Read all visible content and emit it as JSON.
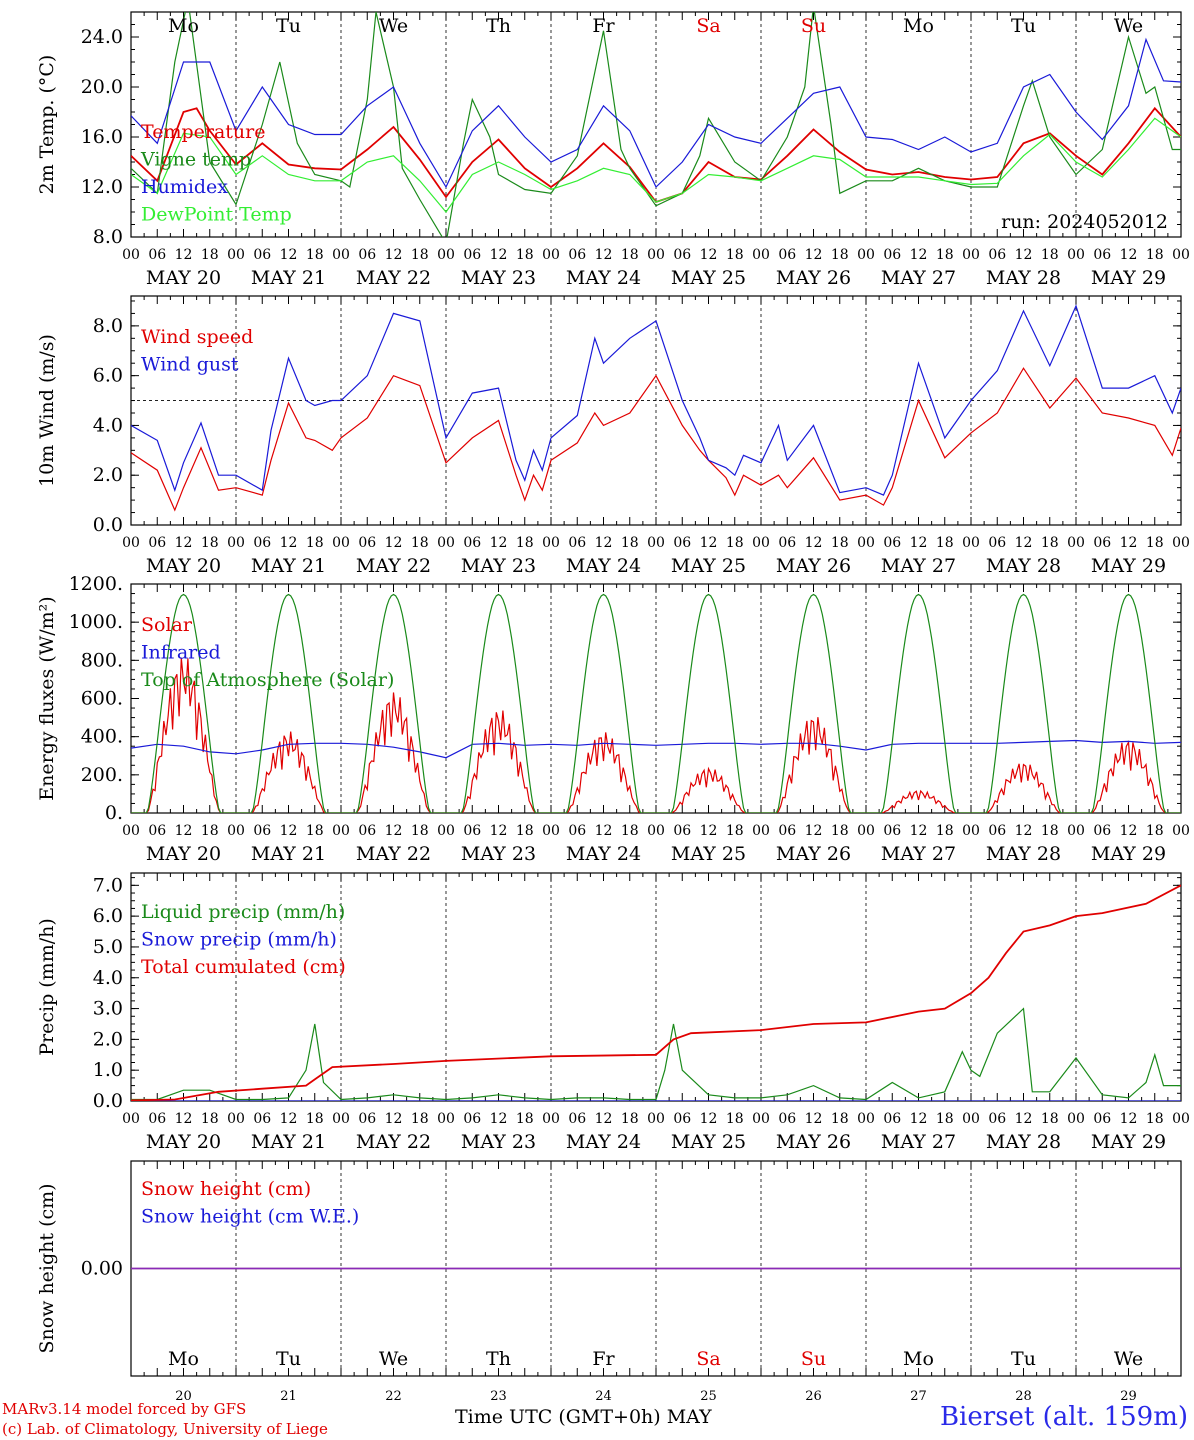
{
  "run_label": "run: 2024052012",
  "weekdays": [
    "Mo",
    "Tu",
    "We",
    "Th",
    "Fr",
    "Sa",
    "Su",
    "Mo",
    "Tu",
    "We"
  ],
  "weekend_color": "#e00000",
  "date_labels": [
    "MAY 20",
    "MAY 21",
    "MAY 22",
    "MAY 23",
    "MAY 24",
    "MAY 25",
    "MAY 26",
    "MAY 27",
    "MAY 28",
    "MAY 29"
  ],
  "hour_labels": [
    "00",
    "06",
    "12",
    "18"
  ],
  "bottom_days": [
    "20",
    "21",
    "22",
    "23",
    "24",
    "25",
    "26",
    "27",
    "28",
    "29"
  ],
  "footer": {
    "model": "MARv3.14 model forced by GFS",
    "lab": "(c) Lab. of Climatology, University of Liege",
    "xaxis": "Time UTC (GMT+0h) MAY",
    "station": "Bierset (alt. 159m)"
  },
  "chart_data": [
    {
      "type": "line",
      "ylabel": "2m Temp. (°C)",
      "ylim": [
        8,
        26
      ],
      "yticks": [
        "8.0",
        "12.0",
        "16.0",
        "20.0",
        "24.0"
      ],
      "ytick_values": [
        8,
        12,
        16,
        20,
        24
      ],
      "x_unit": "hours since 2024-05-20 00 UTC",
      "series": [
        {
          "name": "Temperature",
          "color": "#e00000",
          "x": [
            0,
            6,
            12,
            15,
            18,
            24,
            30,
            36,
            42,
            48,
            54,
            60,
            66,
            72,
            78,
            84,
            90,
            96,
            102,
            108,
            114,
            120,
            126,
            132,
            138,
            144,
            150,
            156,
            162,
            168,
            174,
            180,
            186,
            192,
            198,
            204,
            210,
            216,
            222,
            228,
            234,
            240
          ],
          "y": [
            14.5,
            12.5,
            18.0,
            18.3,
            16.5,
            13.8,
            15.5,
            13.8,
            13.5,
            13.4,
            15.0,
            16.8,
            14.2,
            11.2,
            14.0,
            15.8,
            13.5,
            12.0,
            13.5,
            15.5,
            13.6,
            10.8,
            11.5,
            14.0,
            12.8,
            12.6,
            14.5,
            16.6,
            14.8,
            13.4,
            13.0,
            13.2,
            12.8,
            12.6,
            12.8,
            15.5,
            16.3,
            14.5,
            13.0,
            15.5,
            18.3,
            16.0
          ]
        },
        {
          "name": "Vigne temp",
          "color": "#1a8a1a",
          "x": [
            0,
            6,
            10,
            13,
            18,
            24,
            30,
            34,
            38,
            42,
            48,
            50,
            54,
            56,
            60,
            62,
            66,
            72,
            76,
            78,
            82,
            84,
            90,
            96,
            102,
            108,
            112,
            114,
            120,
            126,
            130,
            132,
            138,
            144,
            150,
            154,
            156,
            160,
            162,
            168,
            174,
            180,
            186,
            192,
            198,
            204,
            206,
            210,
            216,
            222,
            228,
            232,
            234,
            238,
            240
          ],
          "y": [
            13.5,
            11.5,
            22.0,
            27.0,
            14.0,
            10.6,
            17.0,
            22.0,
            15.5,
            13.0,
            12.5,
            12.0,
            19.0,
            26.0,
            20.0,
            13.5,
            11.0,
            7.5,
            15.5,
            19.0,
            16.0,
            13.0,
            11.8,
            11.5,
            14.5,
            24.5,
            15.0,
            13.5,
            10.5,
            11.5,
            14.5,
            17.5,
            14.0,
            12.5,
            16.0,
            20.0,
            26.5,
            17.0,
            11.5,
            12.5,
            12.5,
            13.5,
            12.5,
            12.0,
            12.0,
            18.5,
            20.5,
            16.0,
            13.0,
            15.0,
            24.0,
            19.5,
            20.0,
            15.0,
            15.0
          ]
        },
        {
          "name": "Humidex",
          "color": "#1a1ad8",
          "x": [
            0,
            6,
            12,
            18,
            24,
            30,
            36,
            42,
            48,
            54,
            60,
            66,
            72,
            78,
            84,
            90,
            96,
            102,
            108,
            114,
            120,
            126,
            132,
            138,
            144,
            150,
            156,
            162,
            168,
            174,
            180,
            186,
            192,
            198,
            204,
            210,
            216,
            222,
            228,
            232,
            236,
            240
          ],
          "y": [
            17.7,
            15.5,
            22.0,
            22.0,
            16.5,
            20.0,
            17.0,
            16.2,
            16.2,
            18.5,
            20.0,
            15.5,
            12.0,
            16.5,
            18.5,
            16.0,
            14.0,
            15.0,
            18.5,
            16.5,
            12.0,
            14.0,
            17.0,
            16.0,
            15.5,
            17.5,
            19.5,
            20.0,
            16.0,
            15.8,
            15.0,
            16.0,
            14.8,
            15.5,
            20.0,
            21.0,
            18.0,
            15.8,
            18.5,
            23.8,
            20.5,
            20.4
          ]
        },
        {
          "name": "DewPoint Temp",
          "color": "#33ee33",
          "x": [
            0,
            6,
            12,
            18,
            24,
            30,
            36,
            42,
            48,
            54,
            60,
            66,
            72,
            78,
            84,
            90,
            96,
            102,
            108,
            114,
            120,
            126,
            132,
            138,
            144,
            150,
            156,
            162,
            168,
            174,
            180,
            186,
            192,
            198,
            204,
            210,
            216,
            222,
            228,
            234,
            240
          ],
          "y": [
            13.0,
            11.5,
            16.3,
            16.0,
            13.0,
            14.5,
            13.0,
            12.5,
            12.5,
            14.0,
            14.5,
            12.5,
            10.0,
            13.0,
            14.0,
            13.0,
            11.8,
            12.5,
            13.5,
            13.0,
            10.8,
            11.5,
            13.0,
            12.8,
            12.5,
            13.5,
            14.5,
            14.2,
            12.8,
            12.8,
            12.8,
            12.5,
            12.2,
            12.3,
            14.5,
            16.2,
            14.0,
            12.8,
            15.0,
            17.5,
            16.0
          ]
        }
      ],
      "legend": [
        "Temperature",
        "Vigne temp",
        "Humidex",
        "DewPoint Temp"
      ],
      "grid": "vertical dashed at day boundaries"
    },
    {
      "type": "line",
      "ylabel": "10m Wind (m/s)",
      "ylim": [
        0,
        9.2
      ],
      "yticks": [
        "0.0",
        "2.0",
        "4.0",
        "6.0",
        "8.0"
      ],
      "ytick_values": [
        0,
        2,
        4,
        6,
        8
      ],
      "reference_line": 5.0,
      "series": [
        {
          "name": "Wind speed",
          "color": "#e00000",
          "x": [
            0,
            6,
            10,
            12,
            16,
            20,
            24,
            30,
            32,
            36,
            40,
            42,
            46,
            48,
            54,
            60,
            66,
            72,
            78,
            84,
            88,
            90,
            92,
            94,
            96,
            102,
            106,
            108,
            114,
            120,
            126,
            130,
            132,
            136,
            138,
            140,
            144,
            148,
            150,
            156,
            162,
            168,
            172,
            174,
            180,
            186,
            192,
            198,
            204,
            210,
            216,
            222,
            228,
            234,
            238,
            240
          ],
          "y": [
            2.9,
            2.2,
            0.6,
            1.5,
            3.1,
            1.4,
            1.5,
            1.2,
            2.6,
            4.9,
            3.5,
            3.4,
            3.0,
            3.5,
            4.3,
            6.0,
            5.6,
            2.5,
            3.5,
            4.2,
            2.0,
            1.0,
            2.0,
            1.4,
            2.6,
            3.3,
            4.5,
            4.0,
            4.5,
            6.0,
            4.0,
            3.0,
            2.6,
            1.9,
            1.2,
            2.0,
            1.6,
            2.0,
            1.5,
            2.7,
            1.0,
            1.2,
            0.8,
            1.5,
            5.0,
            2.7,
            3.7,
            4.5,
            6.3,
            4.7,
            5.9,
            4.5,
            4.3,
            4.0,
            2.8,
            3.9
          ]
        },
        {
          "name": "Wind gust",
          "color": "#1a1ad8",
          "x": [
            0,
            6,
            10,
            12,
            16,
            20,
            24,
            30,
            32,
            36,
            40,
            42,
            46,
            48,
            54,
            60,
            66,
            72,
            78,
            84,
            88,
            90,
            92,
            94,
            96,
            102,
            106,
            108,
            114,
            120,
            126,
            130,
            132,
            136,
            138,
            140,
            144,
            148,
            150,
            156,
            162,
            168,
            172,
            174,
            180,
            186,
            192,
            198,
            204,
            210,
            216,
            222,
            228,
            234,
            238,
            240
          ],
          "y": [
            4.0,
            3.4,
            1.4,
            2.5,
            4.1,
            2.0,
            2.0,
            1.4,
            3.8,
            6.7,
            5.0,
            4.8,
            5.0,
            5.0,
            6.0,
            8.5,
            8.2,
            3.5,
            5.3,
            5.5,
            2.6,
            1.8,
            3.0,
            2.2,
            3.5,
            4.4,
            7.5,
            6.5,
            7.5,
            8.2,
            5.0,
            3.5,
            2.6,
            2.3,
            2.0,
            2.8,
            2.5,
            4.0,
            2.6,
            4.0,
            1.3,
            1.5,
            1.2,
            2.0,
            6.5,
            3.5,
            5.0,
            6.2,
            8.6,
            6.4,
            8.8,
            5.5,
            5.5,
            6.0,
            4.5,
            5.5
          ]
        }
      ],
      "legend": [
        "Wind speed",
        "Wind gust"
      ]
    },
    {
      "type": "line",
      "ylabel": "Energy fluxes (W/m²)",
      "ylim": [
        0,
        1200
      ],
      "yticks": [
        "0.",
        "200.",
        "400.",
        "600.",
        "800.",
        "1000.",
        "1200."
      ],
      "ytick_values": [
        0,
        200,
        400,
        600,
        800,
        1000,
        1200
      ],
      "series": [
        {
          "name": "Solar",
          "color": "#e00000",
          "day_peaks": [
            830,
            430,
            640,
            550,
            430,
            240,
            520,
            120,
            270,
            390
          ]
        },
        {
          "name": "Infrared",
          "color": "#1a1ad8",
          "x": [
            0,
            6,
            12,
            18,
            24,
            30,
            36,
            42,
            48,
            54,
            60,
            66,
            72,
            78,
            84,
            90,
            96,
            102,
            108,
            114,
            120,
            126,
            132,
            138,
            144,
            150,
            156,
            162,
            168,
            174,
            180,
            186,
            192,
            198,
            204,
            210,
            216,
            222,
            228,
            234,
            240
          ],
          "y": [
            340,
            360,
            350,
            320,
            310,
            330,
            360,
            365,
            365,
            360,
            345,
            320,
            290,
            360,
            365,
            355,
            360,
            355,
            365,
            360,
            355,
            360,
            365,
            365,
            360,
            365,
            365,
            350,
            330,
            360,
            365,
            365,
            365,
            365,
            370,
            375,
            380,
            370,
            375,
            365,
            370
          ]
        },
        {
          "name": "Top of Atmosphere (Solar)",
          "color": "#1a8a1a",
          "day_peaks": [
            1145,
            1145,
            1145,
            1145,
            1145,
            1145,
            1145,
            1145,
            1145,
            1145
          ]
        }
      ],
      "legend": [
        "Solar",
        "Infrared",
        "Top of Atmosphere (Solar)"
      ]
    },
    {
      "type": "line",
      "ylabel": "Precip (mm/h)",
      "ylim": [
        0,
        7.4
      ],
      "yticks": [
        "0.0",
        "1.0",
        "2.0",
        "3.0",
        "4.0",
        "5.0",
        "6.0",
        "7.0"
      ],
      "ytick_values": [
        0,
        1,
        2,
        3,
        4,
        5,
        6,
        7
      ],
      "series": [
        {
          "name": "Liquid precip (mm/h)",
          "color": "#1a8a1a",
          "x": [
            0,
            6,
            12,
            18,
            24,
            30,
            36,
            40,
            42,
            44,
            48,
            54,
            60,
            66,
            72,
            78,
            84,
            90,
            96,
            102,
            108,
            114,
            120,
            122,
            124,
            126,
            132,
            138,
            144,
            150,
            156,
            162,
            168,
            174,
            180,
            186,
            190,
            192,
            194,
            198,
            204,
            206,
            208,
            210,
            216,
            222,
            228,
            232,
            234,
            236,
            240
          ],
          "y": [
            0.05,
            0.05,
            0.35,
            0.35,
            0.05,
            0.05,
            0.1,
            1.0,
            2.5,
            0.6,
            0.05,
            0.1,
            0.2,
            0.1,
            0.05,
            0.1,
            0.2,
            0.1,
            0.05,
            0.1,
            0.1,
            0.05,
            0.05,
            1.0,
            2.5,
            1.0,
            0.2,
            0.1,
            0.1,
            0.2,
            0.5,
            0.1,
            0.05,
            0.6,
            0.1,
            0.3,
            1.6,
            1.0,
            0.8,
            2.2,
            3.0,
            0.3,
            0.3,
            0.3,
            1.4,
            0.2,
            0.1,
            0.6,
            1.5,
            0.5,
            0.5
          ]
        },
        {
          "name": "Snow precip (mm/h)",
          "color": "#1a1ad8",
          "x": [
            0,
            240
          ],
          "y": [
            0,
            0
          ]
        },
        {
          "name": "Total cumulated (cm)",
          "color": "#e00000",
          "x": [
            0,
            10,
            20,
            30,
            40,
            42,
            46,
            60,
            72,
            96,
            120,
            124,
            128,
            144,
            156,
            168,
            180,
            186,
            192,
            196,
            200,
            204,
            210,
            216,
            222,
            232,
            240
          ],
          "y": [
            0.02,
            0.05,
            0.3,
            0.4,
            0.5,
            0.7,
            1.1,
            1.2,
            1.3,
            1.45,
            1.5,
            2.0,
            2.2,
            2.3,
            2.5,
            2.55,
            2.9,
            3.0,
            3.5,
            4.0,
            4.8,
            5.5,
            5.7,
            6.0,
            6.1,
            6.4,
            7.0
          ]
        }
      ],
      "legend": [
        "Liquid precip (mm/h)",
        "Snow precip (mm/h)",
        "Total cumulated (cm)"
      ]
    },
    {
      "type": "line",
      "ylabel": "Snow height (cm)",
      "yticks": [
        "0.00"
      ],
      "ytick_values": [
        0
      ],
      "series": [
        {
          "name": "Snow height (cm)",
          "color": "#e00000",
          "x": [
            0,
            240
          ],
          "y": [
            0,
            0
          ]
        },
        {
          "name": "Snow height (cm W.E.)",
          "color": "#1a1ad8",
          "x": [
            0,
            240
          ],
          "y": [
            0,
            0
          ]
        }
      ],
      "legend": [
        "Snow height (cm)",
        "Snow height (cm W.E.)"
      ]
    }
  ]
}
